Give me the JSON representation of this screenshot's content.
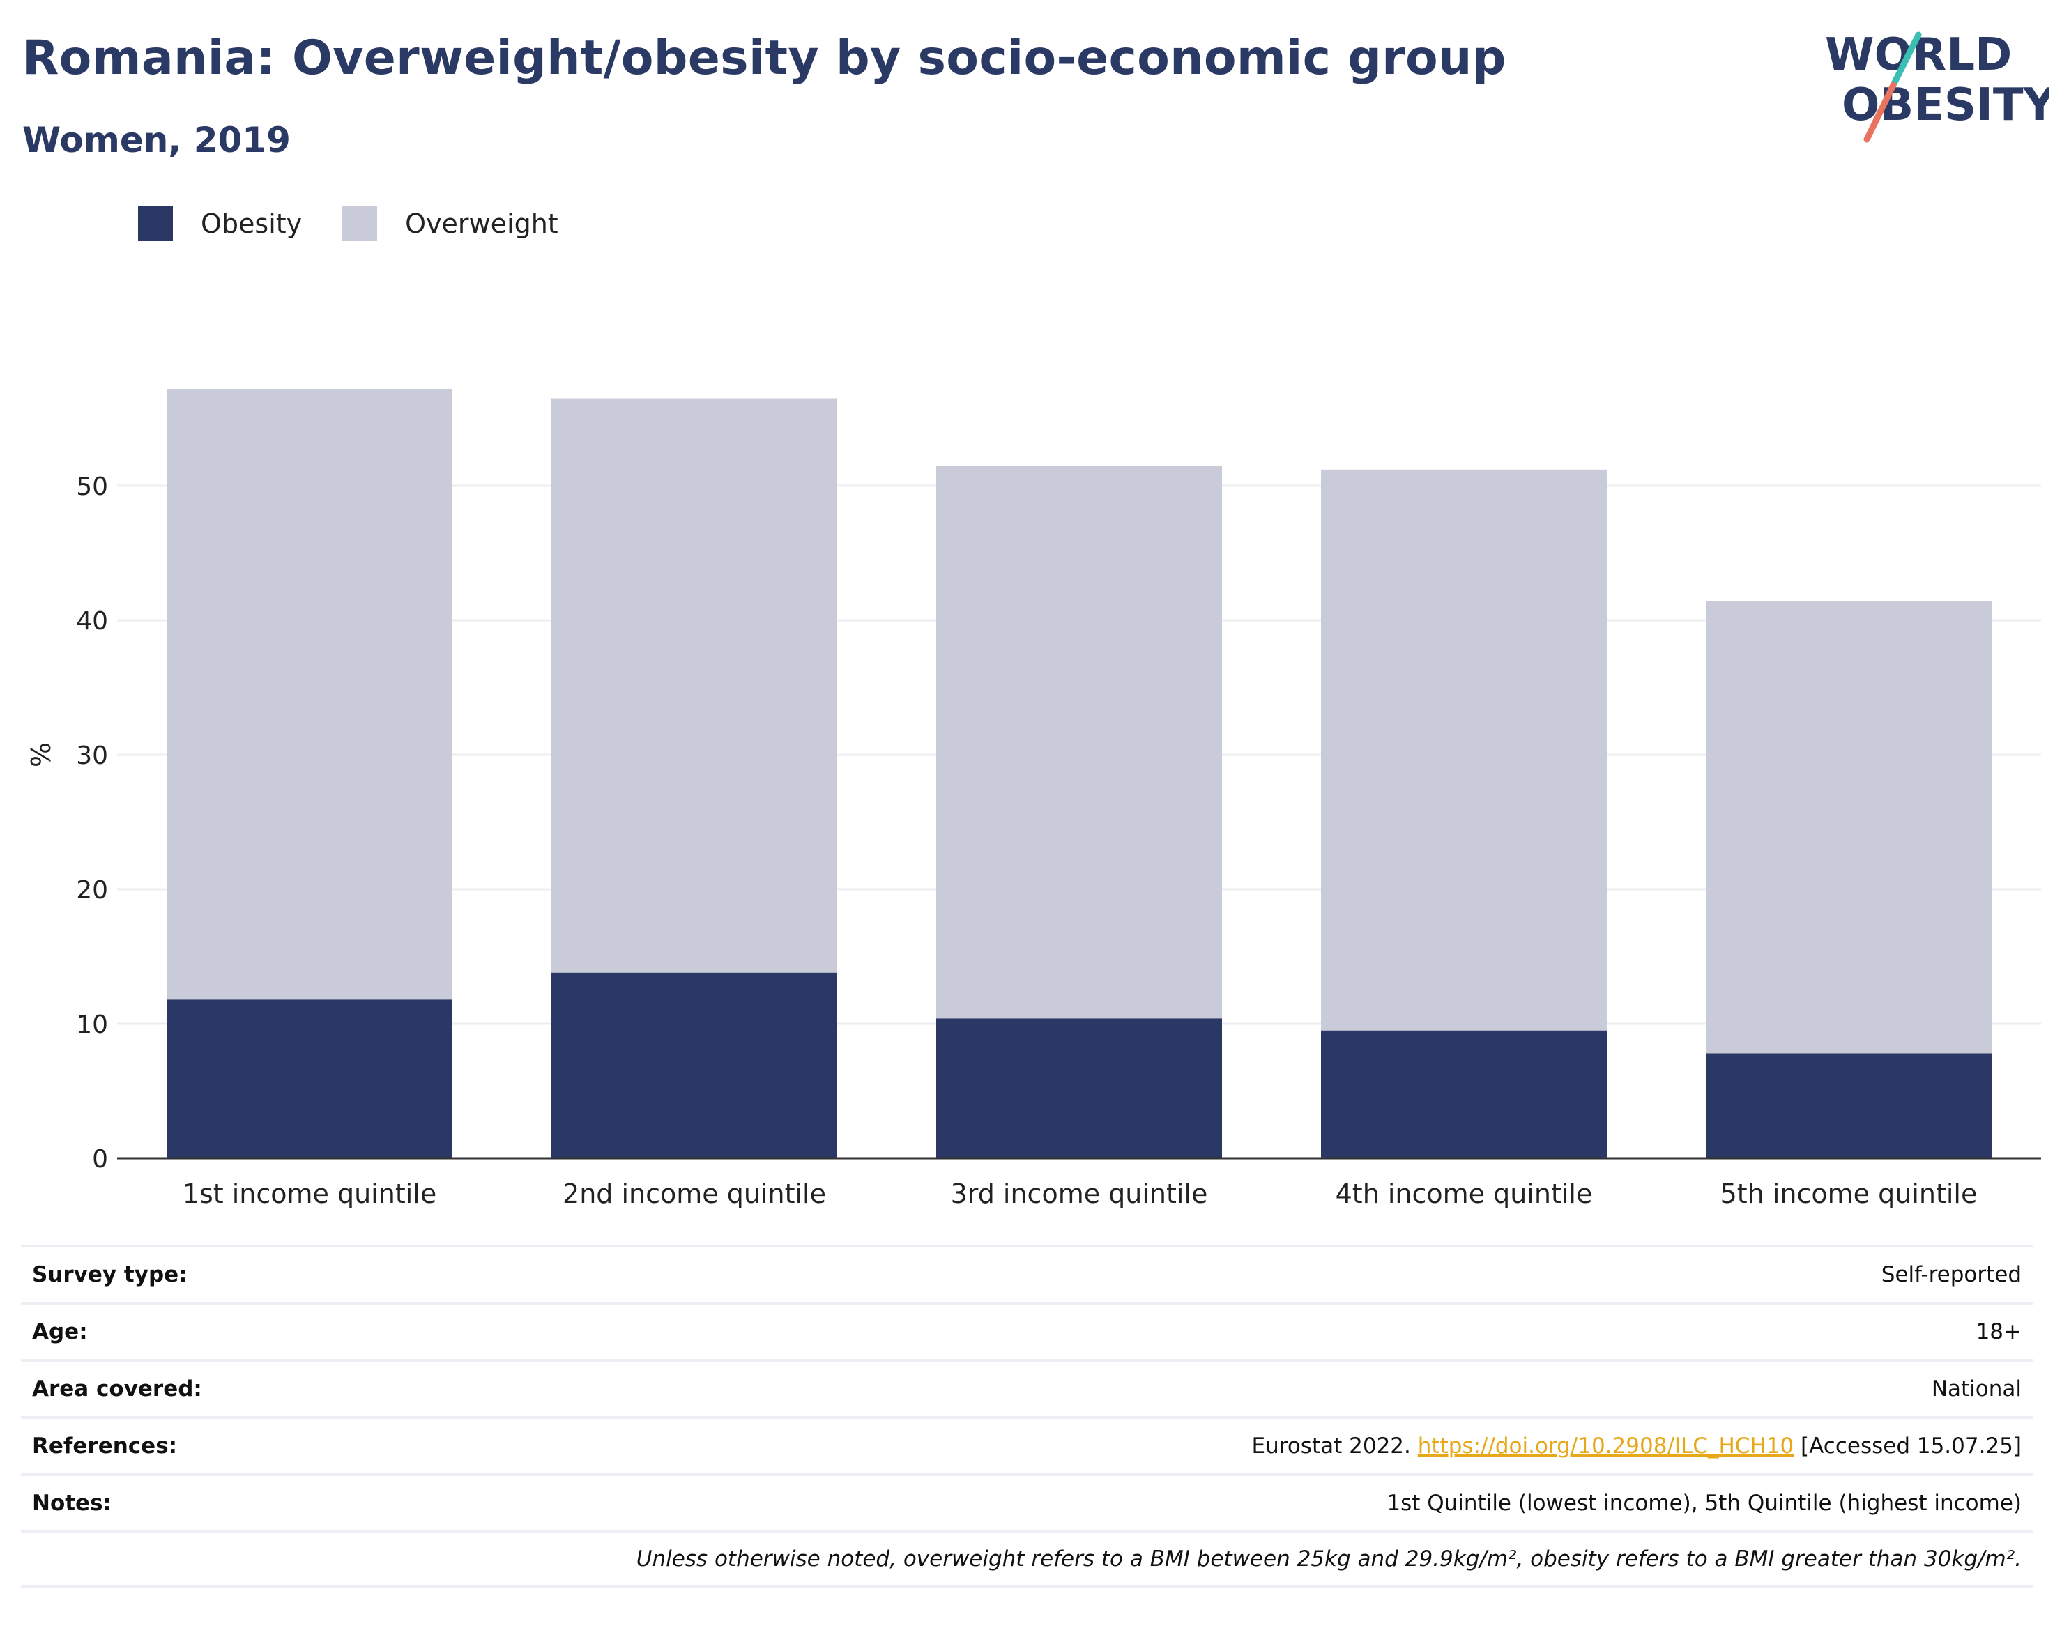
{
  "header": {
    "title": "Romania: Overweight/obesity by socio-economic group",
    "subtitle": "Women, 2019"
  },
  "logo": {
    "line1": "WORLD",
    "line2": "OBESITY",
    "colors": {
      "text": "#2b3a64",
      "teal": "#3bbfb3",
      "coral": "#e8735f"
    }
  },
  "legend": [
    {
      "label": "Obesity",
      "color": "#2b3764"
    },
    {
      "label": "Overweight",
      "color": "#c9ccd8"
    }
  ],
  "chart_data": {
    "type": "bar",
    "stacked": true,
    "categories": [
      "1st income quintile",
      "2nd income quintile",
      "3rd income quintile",
      "4th income quintile",
      "5th income quintile"
    ],
    "series": [
      {
        "name": "Obesity",
        "color": "#2b3764",
        "values": [
          11.8,
          13.8,
          10.4,
          9.5,
          7.8
        ]
      },
      {
        "name": "Overweight",
        "color": "#c9ccd8",
        "values": [
          45.4,
          42.7,
          41.1,
          41.7,
          33.6
        ]
      }
    ],
    "title": "Romania: Overweight/obesity by socio-economic group",
    "subtitle": "Women, 2019",
    "xlabel": "",
    "ylabel": "%",
    "ylim": [
      0,
      60
    ],
    "yticks": [
      0,
      10,
      20,
      30,
      40,
      50
    ],
    "grid": true,
    "legend_position": "top-left"
  },
  "info": {
    "survey_type": {
      "label": "Survey type:",
      "value": "Self-reported"
    },
    "age": {
      "label": "Age:",
      "value": "18+"
    },
    "area": {
      "label": "Area covered:",
      "value": "National"
    },
    "references": {
      "label": "References:",
      "prefix": "Eurostat 2022.",
      "link": "https://doi.org/10.2908/ILC_HCH10",
      "suffix": "[Accessed 15.07.25]"
    },
    "notes": {
      "label": "Notes:",
      "value": "1st Quintile (lowest income), 5th Quintile (highest income)"
    },
    "footnote": "Unless otherwise noted, overweight refers to a BMI between 25kg and 29.9kg/m², obesity refers to a BMI greater than 30kg/m²."
  }
}
